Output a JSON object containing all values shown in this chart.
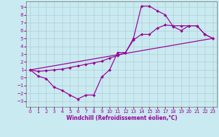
{
  "bg_color": "#c9eaf0",
  "line_color": "#990099",
  "marker": "D",
  "markersize": 2.0,
  "linewidth": 0.9,
  "xlabel": "Windchill (Refroidissement éolien,°C)",
  "xlabel_fontsize": 5.5,
  "tick_fontsize": 5.0,
  "xlim": [
    -0.5,
    23.5
  ],
  "ylim": [
    -3.7,
    9.7
  ],
  "xticks": [
    0,
    1,
    2,
    3,
    4,
    5,
    6,
    7,
    8,
    9,
    10,
    11,
    12,
    13,
    14,
    15,
    16,
    17,
    18,
    19,
    20,
    21,
    22,
    23
  ],
  "yticks": [
    -3,
    -2,
    -1,
    0,
    1,
    2,
    3,
    4,
    5,
    6,
    7,
    8,
    9
  ],
  "grid_color": "#b0ccd4",
  "curves": [
    {
      "x": [
        0,
        1,
        2,
        3,
        4,
        5,
        6,
        7,
        8,
        9,
        10,
        11,
        12,
        13,
        14,
        15,
        16,
        17,
        18,
        19,
        20,
        21,
        22,
        23
      ],
      "y": [
        1,
        0.2,
        -0.1,
        -1.2,
        -1.6,
        -2.2,
        -2.7,
        -2.2,
        -2.2,
        0.1,
        1.0,
        3.2,
        3.2,
        5.0,
        9.1,
        9.1,
        8.5,
        8.0,
        6.5,
        6.0,
        6.6,
        6.6,
        5.5,
        5.0
      ]
    },
    {
      "x": [
        0,
        1,
        2,
        3,
        4,
        5,
        6,
        7,
        8,
        9,
        10,
        11,
        12,
        13,
        14,
        15,
        16,
        17,
        18,
        19,
        20,
        21,
        22,
        23
      ],
      "y": [
        1,
        0.8,
        0.9,
        1.0,
        1.1,
        1.3,
        1.5,
        1.7,
        1.9,
        2.1,
        2.5,
        2.8,
        3.2,
        4.8,
        5.5,
        5.5,
        6.3,
        6.7,
        6.6,
        6.6,
        6.6,
        6.6,
        5.5,
        5.0
      ]
    },
    {
      "x": [
        0,
        23
      ],
      "y": [
        1,
        5.0
      ]
    }
  ]
}
